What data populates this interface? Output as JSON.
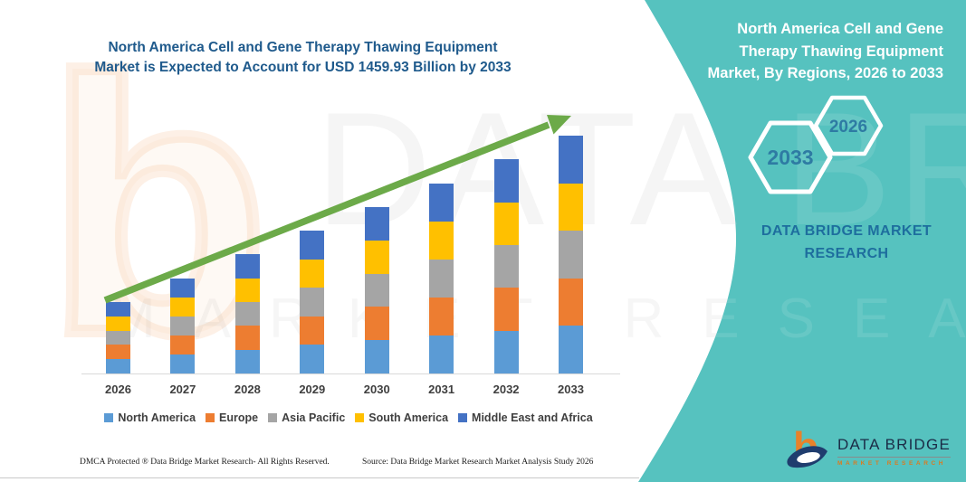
{
  "colors": {
    "teal_panel": "#56C2BF",
    "title_blue": "#1F5A8C",
    "hexagon_label_blue": "#2E7BA3",
    "brand_blue": "#1E6E9E",
    "arrow_green": "#6CAA49",
    "axis_text": "#3F3F3F",
    "logo_navy": "#1B2C47",
    "logo_orange": "#DC7A1F"
  },
  "header": {
    "title_line1": "North America Cell and Gene Therapy Thawing Equipment",
    "title_line2": "Market is Expected to Account for USD 1459.93 Billion by 2033"
  },
  "chart_data": {
    "type": "bar",
    "stacked": true,
    "title": "North America Cell and Gene Therapy Thawing Equipment Market is Expected to Account for USD 1459.93 Billion by 2033",
    "unit": "USD Billion",
    "categories": [
      "2026",
      "2027",
      "2028",
      "2029",
      "2030",
      "2031",
      "2032",
      "2033"
    ],
    "series": [
      {
        "name": "North America",
        "color": "#5B9BD5",
        "values": [
          87.7,
          116.9,
          146.1,
          175.3,
          204.4,
          233.6,
          262.8,
          292.0
        ]
      },
      {
        "name": "Europe",
        "color": "#ED7D31",
        "values": [
          87.7,
          116.9,
          146.1,
          175.3,
          204.4,
          233.6,
          262.8,
          292.0
        ]
      },
      {
        "name": "Asia Pacific",
        "color": "#A5A5A5",
        "values": [
          87.7,
          116.9,
          146.1,
          175.3,
          204.4,
          233.6,
          262.8,
          292.0
        ]
      },
      {
        "name": "South America",
        "color": "#FFC000",
        "values": [
          87.7,
          116.9,
          146.1,
          175.3,
          204.4,
          233.6,
          262.8,
          292.0
        ]
      },
      {
        "name": "Middle East and Africa",
        "color": "#4472C4",
        "values": [
          87.7,
          116.9,
          146.1,
          175.3,
          204.4,
          233.6,
          262.8,
          292.0
        ]
      }
    ],
    "totals": [
      438.6,
      584.5,
      730.4,
      876.3,
      1022.2,
      1168.1,
      1314.0,
      1459.93
    ],
    "xlabel": "",
    "ylabel": "",
    "ylim": [
      0,
      1500
    ],
    "grid": false,
    "legend_position": "bottom",
    "trend_arrow": true
  },
  "right_panel": {
    "title_lines": [
      "North America Cell and Gene",
      "Therapy Thawing Equipment",
      "Market, By Regions, 2026 to 2033"
    ],
    "hexagon_front_label": "2033",
    "hexagon_back_label": "2026",
    "brand_line1": "DATA BRIDGE MARKET",
    "brand_line2": "RESEARCH"
  },
  "logo": {
    "name": "DATA BRIDGE",
    "subtitle": "MARKET RESEARCH"
  },
  "watermark": {
    "letter": "b",
    "big_text": "DATA BRIDGE",
    "spaced_text": "MARKET RESEARCH"
  },
  "footer": {
    "dmca": "DMCA Protected ® Data Bridge Market Research-  All Rights Reserved.",
    "source": "Source: Data Bridge Market Research  Market Analysis Study 2026"
  }
}
